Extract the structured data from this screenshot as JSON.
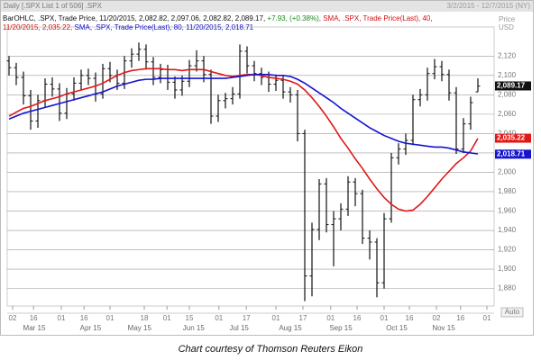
{
  "chart_data": {
    "type": "ohlc",
    "title": "Daily [.SPX List 1 of 506] .SPX",
    "date_range": "3/2/2015 - 12/7/2015 (NY)",
    "axis_label": "Price",
    "axis_unit": "USD",
    "scale_button": "Auto",
    "caption": "Chart courtesy of Thomson Reuters Eikon",
    "header_lines": [
      [
        {
          "text": "BarOHLC, .SPX, Trade Price, 11/20/2015, 2,082.82, 2,097.06, 2,082.82, 2,089.17, ",
          "color": "#111111"
        },
        {
          "text": "+7.93, (+0.38%), ",
          "color": "#1a8a1a"
        },
        {
          "text": "SMA, .SPX, Trade Price(Last), 40,",
          "color": "#d01010"
        }
      ],
      [
        {
          "text": "11/20/2015, 2,035.22, ",
          "color": "#d01010"
        },
        {
          "text": "SMA, .SPX, Trade Price(Last), 80, 11/20/2015, 2,018.71",
          "color": "#1010c8"
        }
      ]
    ],
    "categories": [
      null,
      null,
      null,
      null,
      null,
      null,
      null,
      null,
      null,
      null,
      null,
      null,
      null,
      null,
      null,
      null,
      null,
      null,
      null,
      null,
      null,
      null,
      null,
      null,
      null,
      null,
      null,
      null,
      null,
      null,
      null,
      null,
      null,
      null,
      null,
      null,
      null,
      null,
      null,
      null,
      null,
      null,
      null,
      null,
      null,
      null,
      null,
      null,
      null,
      null,
      null,
      null,
      null,
      null,
      null,
      null,
      null,
      null,
      null,
      null,
      null,
      null,
      null,
      null,
      null,
      null
    ],
    "bars": {
      "color": "#111111",
      "open": [
        2115,
        2108,
        2098,
        2079,
        2053,
        2074,
        2091,
        2086,
        2061,
        2081,
        2092,
        2100,
        2097,
        2081,
        2107,
        2100,
        2092,
        2115,
        2122,
        2127,
        2114,
        2098,
        2106,
        2093,
        2085,
        2094,
        2110,
        2115,
        2101,
        2058,
        2074,
        2076,
        2081,
        2125,
        2110,
        2102,
        2098,
        2091,
        2095,
        2083,
        2080,
        2040,
        1893,
        1941,
        1988,
        1946,
        1952,
        1962,
        1990,
        1978,
        1932,
        1928,
        1886,
        1952,
        2015,
        2024,
        2033,
        2075,
        2080,
        2102,
        2109,
        2101,
        2082,
        2024,
        2050,
        2083
      ],
      "high": [
        2120,
        2113,
        2104,
        2085,
        2080,
        2097,
        2098,
        2092,
        2087,
        2098,
        2106,
        2107,
        2103,
        2112,
        2114,
        2106,
        2120,
        2128,
        2134,
        2132,
        2119,
        2112,
        2111,
        2099,
        2100,
        2116,
        2126,
        2120,
        2106,
        2080,
        2082,
        2088,
        2132,
        2130,
        2115,
        2108,
        2104,
        2101,
        2100,
        2088,
        2085,
        2044,
        1948,
        1993,
        1994,
        1960,
        1968,
        1996,
        1994,
        1982,
        1940,
        1932,
        1958,
        2020,
        2030,
        2040,
        2080,
        2086,
        2108,
        2117,
        2115,
        2106,
        2088,
        2056,
        2078,
        2097
      ],
      "low": [
        2100,
        2090,
        2070,
        2044,
        2046,
        2067,
        2078,
        2053,
        2055,
        2074,
        2085,
        2090,
        2073,
        2076,
        2093,
        2085,
        2086,
        2108,
        2115,
        2106,
        2090,
        2092,
        2085,
        2076,
        2079,
        2088,
        2104,
        2093,
        2050,
        2052,
        2066,
        2070,
        2076,
        2102,
        2094,
        2090,
        2083,
        2084,
        2076,
        2072,
        2032,
        1867,
        1872,
        1930,
        1938,
        1903,
        1940,
        1955,
        1965,
        1926,
        1910,
        1871,
        1880,
        1948,
        2008,
        2018,
        2028,
        2068,
        2074,
        2096,
        2094,
        2074,
        2019,
        2020,
        2044,
        2083
      ],
      "close": [
        2108,
        2098,
        2079,
        2053,
        2074,
        2091,
        2086,
        2061,
        2081,
        2092,
        2100,
        2097,
        2081,
        2107,
        2100,
        2092,
        2115,
        2122,
        2127,
        2114,
        2098,
        2106,
        2093,
        2085,
        2094,
        2110,
        2115,
        2101,
        2058,
        2074,
        2076,
        2081,
        2125,
        2110,
        2102,
        2098,
        2091,
        2095,
        2083,
        2080,
        2040,
        1893,
        1941,
        1988,
        1946,
        1952,
        1962,
        1990,
        1978,
        1932,
        1928,
        1886,
        1952,
        2015,
        2024,
        2033,
        2075,
        2080,
        2102,
        2109,
        2101,
        2082,
        2024,
        2050,
        2072,
        2089
      ]
    },
    "series": [
      {
        "color": "#e01818",
        "values": [
          2058,
          2062,
          2066,
          2068,
          2071,
          2074,
          2076,
          2078,
          2081,
          2083,
          2085,
          2087,
          2089,
          2092,
          2096,
          2100,
          2103,
          2105,
          2106,
          2107,
          2107,
          2107,
          2106,
          2106,
          2105,
          2106,
          2106,
          2106,
          2104,
          2102,
          2100,
          2099,
          2100,
          2101,
          2101,
          2100,
          2098,
          2097,
          2096,
          2094,
          2091,
          2085,
          2077,
          2068,
          2058,
          2047,
          2035,
          2025,
          2014,
          2004,
          1993,
          1983,
          1974,
          1967,
          1962,
          1960,
          1961,
          1967,
          1975,
          1984,
          1993,
          2001,
          2009,
          2015,
          2022,
          2035
        ]
      },
      {
        "color": "#1414d0",
        "values": [
          2055,
          2058,
          2061,
          2063,
          2065,
          2067,
          2069,
          2071,
          2073,
          2075,
          2077,
          2079,
          2081,
          2083,
          2086,
          2089,
          2091,
          2093,
          2095,
          2096,
          2096,
          2097,
          2097,
          2097,
          2097,
          2097,
          2097,
          2097,
          2097,
          2097,
          2097,
          2098,
          2099,
          2100,
          2101,
          2101,
          2101,
          2100,
          2100,
          2099,
          2096,
          2092,
          2087,
          2082,
          2077,
          2072,
          2066,
          2061,
          2056,
          2051,
          2046,
          2042,
          2038,
          2035,
          2032,
          2030,
          2029,
          2028,
          2027,
          2026,
          2026,
          2025,
          2023,
          2021,
          2020,
          2019
        ]
      }
    ],
    "tags": [
      {
        "value": 2089.17,
        "label": "2,089.17",
        "color": "#111111"
      },
      {
        "value": 2035.22,
        "label": "2,035.22",
        "color": "#e01818"
      },
      {
        "value": 2018.71,
        "label": "2,018.71",
        "color": "#1414d0"
      }
    ],
    "xlim": [
      -0.25,
      67.25
    ],
    "ylim": [
      1862,
      2150
    ],
    "grid": true,
    "yticks": [
      {
        "value": 1880,
        "label": "1,880"
      },
      {
        "value": 1900,
        "label": "1,900"
      },
      {
        "value": 1920,
        "label": "1,920"
      },
      {
        "value": 1940,
        "label": "1,940"
      },
      {
        "value": 1960,
        "label": "1,960"
      },
      {
        "value": 1980,
        "label": "1,980"
      },
      {
        "value": 2000,
        "label": "2,000"
      },
      {
        "value": 2020,
        "label": "2,020"
      },
      {
        "value": 2040,
        "label": "2,040"
      },
      {
        "value": 2060,
        "label": "2,060"
      },
      {
        "value": 2080,
        "label": "2,080"
      },
      {
        "value": 2100,
        "label": "2,100"
      },
      {
        "value": 2120,
        "label": "2,120"
      }
    ],
    "xticks": [
      {
        "value": 0.5,
        "label": "02"
      },
      {
        "value": 3.4,
        "label": "16"
      },
      {
        "value": 7.25,
        "label": "01"
      },
      {
        "value": 10.4,
        "label": "16"
      },
      {
        "value": 14,
        "label": "01"
      },
      {
        "value": 18.75,
        "label": "18"
      },
      {
        "value": 21.9,
        "label": "01"
      },
      {
        "value": 25,
        "label": "15"
      },
      {
        "value": 29.1,
        "label": "01"
      },
      {
        "value": 32.9,
        "label": "17"
      },
      {
        "value": 37,
        "label": "01"
      },
      {
        "value": 40.75,
        "label": "17"
      },
      {
        "value": 44.6,
        "label": "01"
      },
      {
        "value": 48.25,
        "label": "16"
      },
      {
        "value": 52,
        "label": "01"
      },
      {
        "value": 55.5,
        "label": "16"
      },
      {
        "value": 59.25,
        "label": "02"
      },
      {
        "value": 62.6,
        "label": "16"
      },
      {
        "value": 66.25,
        "label": "01"
      }
    ],
    "month_ticks": [
      {
        "value": 3.5,
        "label": "Mar 15"
      },
      {
        "value": 11.3,
        "label": "Apr 15"
      },
      {
        "value": 18.1,
        "label": "May 15"
      },
      {
        "value": 25.6,
        "label": "Jun 15"
      },
      {
        "value": 31.9,
        "label": "Jul 15"
      },
      {
        "value": 39,
        "label": "Aug 15"
      },
      {
        "value": 46,
        "label": "Sep 15"
      },
      {
        "value": 53.75,
        "label": "Oct 15"
      },
      {
        "value": 60.25,
        "label": "Nov 15"
      }
    ]
  }
}
